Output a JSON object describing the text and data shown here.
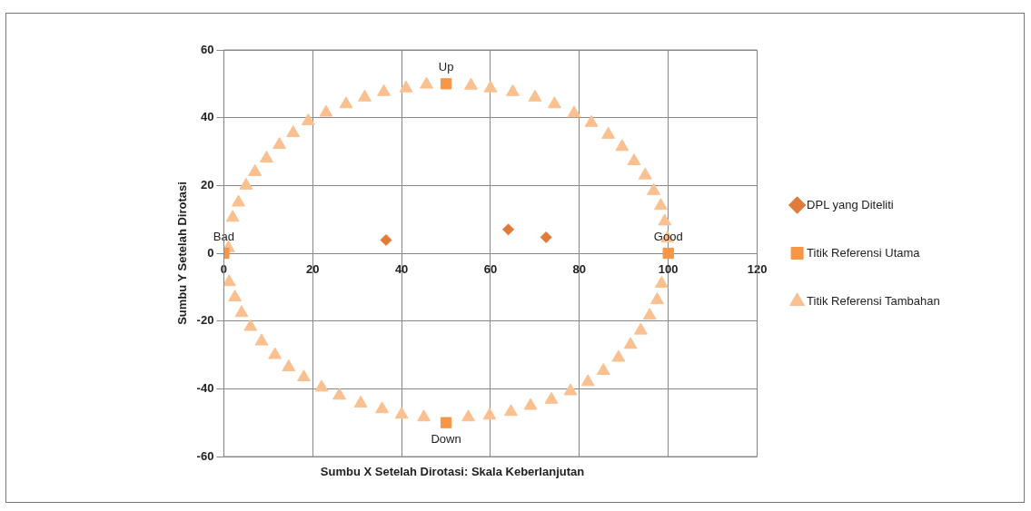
{
  "chart_data": {
    "type": "scatter",
    "xlabel": "Sumbu X Setelah Dirotasi: Skala Keberlanjutan",
    "ylabel": "Sumbu Y Setelah Dirotasi",
    "xlim": [
      0,
      120
    ],
    "ylim": [
      -60,
      60
    ],
    "xticks": [
      0,
      20,
      40,
      60,
      80,
      100,
      120
    ],
    "yticks": [
      -60,
      -40,
      -20,
      0,
      20,
      40,
      60
    ],
    "grid": true,
    "legend": "right",
    "series": [
      {
        "name": "DPL yang Diteliti",
        "color": "#e07b39",
        "marker": "diamond",
        "x": [
          36.5,
          64,
          72.5
        ],
        "values": [
          3.9,
          7,
          4.7
        ]
      },
      {
        "name": "Titik Referensi Utama",
        "color": "#f79646",
        "marker": "square",
        "x": [
          0,
          100,
          50,
          50
        ],
        "values": [
          0,
          0,
          50,
          -50
        ]
      },
      {
        "name": "Titik Referensi Tambahan",
        "color": "#fac090",
        "marker": "triangle",
        "x": [
          1,
          2,
          3.3,
          5,
          7,
          9.6,
          12.5,
          15.6,
          19,
          23,
          27.5,
          31.7,
          36,
          41,
          45.6,
          55.6,
          60,
          65,
          70,
          74.4,
          78.8,
          82.7,
          86.5,
          89.6,
          92.3,
          94.8,
          96.7,
          98.3,
          99.2,
          99.8,
          1.2,
          2.5,
          4,
          6,
          8.5,
          11.5,
          14.6,
          18,
          22,
          26,
          30.8,
          35.6,
          40,
          45,
          55,
          59.8,
          64.6,
          69,
          73.7,
          78,
          81.9,
          85.4,
          88.8,
          91.5,
          93.8,
          95.8,
          97.5,
          98.5
        ],
        "values": [
          1.5,
          10.5,
          15,
          20,
          24,
          28,
          32,
          35.5,
          39,
          41.5,
          44,
          46,
          47.6,
          48.7,
          49.8,
          49.5,
          48.7,
          47.6,
          46,
          44,
          41.3,
          38.5,
          35,
          31.4,
          27.2,
          23,
          18.4,
          14,
          9.4,
          4.4,
          -8.5,
          -13,
          -17.6,
          -21.7,
          -26,
          -30,
          -33.6,
          -36.6,
          -39.6,
          -42,
          -44.3,
          -46,
          -47.6,
          -48.4,
          -48.4,
          -47.9,
          -46.8,
          -45,
          -43.2,
          -40.7,
          -38,
          -34.7,
          -30.8,
          -27,
          -22.8,
          -18.4,
          -13.8,
          -9
        ]
      }
    ],
    "annotations": [
      {
        "text": "Bad",
        "x": 0,
        "y": 0
      },
      {
        "text": "Good",
        "x": 100,
        "y": 0
      },
      {
        "text": "Up",
        "x": 50,
        "y": 50
      },
      {
        "text": "Down",
        "x": 50,
        "y": -50
      }
    ]
  }
}
